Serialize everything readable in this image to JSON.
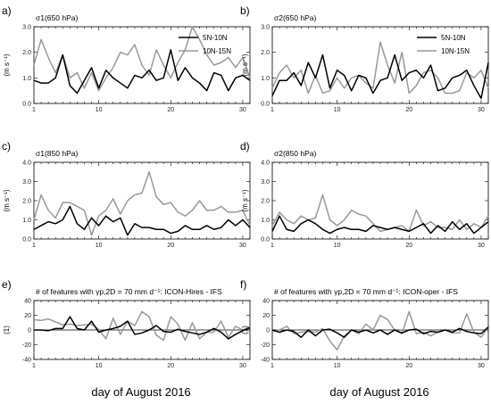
{
  "figure": {
    "xlabel_left": "day of August 2016",
    "xlabel_right": "day of August 2016"
  },
  "chart_data": [
    {
      "type": "line",
      "panel_label": "a)",
      "title": "σ1(650 hPa)",
      "ylabel": "(m s⁻¹)",
      "xlim": [
        1,
        31
      ],
      "ylim": [
        0,
        3
      ],
      "xticks": [
        1,
        10,
        20,
        30
      ],
      "yticks": [
        0,
        1,
        2,
        3
      ],
      "yticklabels": [
        "0.0",
        "1.0",
        "2.0",
        "3.0"
      ],
      "legend": true,
      "legend_position": "top-right",
      "x": [
        1,
        2,
        3,
        4,
        5,
        6,
        7,
        8,
        9,
        10,
        11,
        12,
        13,
        14,
        15,
        16,
        17,
        18,
        19,
        20,
        21,
        22,
        23,
        24,
        25,
        26,
        27,
        28,
        29,
        30,
        31
      ],
      "series": [
        {
          "name": "5N-10N",
          "color": "#000000",
          "values": [
            0.9,
            0.8,
            0.8,
            1.0,
            1.9,
            0.7,
            0.4,
            0.9,
            1.4,
            0.6,
            1.3,
            1.0,
            0.8,
            0.6,
            1.1,
            1.0,
            1.3,
            0.9,
            1.0,
            2.1,
            0.9,
            1.4,
            1.0,
            0.8,
            0.5,
            1.2,
            1.1,
            0.5,
            1.0,
            1.1,
            0.9
          ]
        },
        {
          "name": "10N-15N",
          "color": "#999999",
          "values": [
            1.5,
            2.5,
            1.8,
            1.2,
            1.9,
            1.0,
            1.2,
            0.6,
            1.2,
            0.5,
            1.0,
            1.4,
            2.0,
            1.9,
            2.3,
            1.5,
            1.1,
            2.1,
            1.5,
            1.0,
            1.6,
            2.1,
            3.0,
            2.5,
            1.9,
            1.5,
            1.6,
            1.8,
            1.4,
            1.8,
            1.0
          ]
        }
      ]
    },
    {
      "type": "line",
      "panel_label": "b)",
      "title": "σ2(650 hPa)",
      "ylabel": "(m s⁻¹)",
      "xlim": [
        1,
        31
      ],
      "ylim": [
        0,
        3
      ],
      "xticks": [
        1,
        10,
        20,
        30
      ],
      "yticks": [
        0,
        1,
        2,
        3
      ],
      "yticklabels": [
        "0.0",
        "1.0",
        "2.0",
        "3.0"
      ],
      "legend": true,
      "legend_position": "top-right",
      "x": [
        1,
        2,
        3,
        4,
        5,
        6,
        7,
        8,
        9,
        10,
        11,
        12,
        13,
        14,
        15,
        16,
        17,
        18,
        19,
        20,
        21,
        22,
        23,
        24,
        25,
        26,
        27,
        28,
        29,
        30,
        31
      ],
      "series": [
        {
          "name": "5N-10N",
          "color": "#000000",
          "values": [
            0.3,
            0.9,
            0.9,
            1.2,
            0.7,
            1.6,
            1.0,
            1.9,
            0.6,
            1.3,
            1.1,
            0.5,
            1.1,
            1.0,
            0.4,
            0.9,
            1.0,
            1.9,
            0.9,
            1.2,
            1.3,
            1.0,
            1.5,
            0.5,
            0.6,
            1.0,
            1.1,
            1.3,
            0.7,
            0.2,
            1.6
          ]
        },
        {
          "name": "10N-15N",
          "color": "#999999",
          "values": [
            0.6,
            1.2,
            1.5,
            1.0,
            1.3,
            0.4,
            1.1,
            0.4,
            0.5,
            1.0,
            0.6,
            1.0,
            1.1,
            0.8,
            0.6,
            2.4,
            1.5,
            0.8,
            2.0,
            0.4,
            0.7,
            1.2,
            1.3,
            1.0,
            0.4,
            0.4,
            0.5,
            1.2,
            1.0,
            1.3,
            0.6
          ]
        }
      ]
    },
    {
      "type": "line",
      "panel_label": "c)",
      "title": "σ1(850 hPa)",
      "ylabel": "(m s⁻¹)",
      "xlim": [
        1,
        31
      ],
      "ylim": [
        0,
        4
      ],
      "xticks": [
        1,
        10,
        20,
        30
      ],
      "yticks": [
        0,
        1,
        2,
        3,
        4
      ],
      "yticklabels": [
        "0.0",
        "1.0",
        "2.0",
        "3.0",
        "4.0"
      ],
      "legend": false,
      "x": [
        1,
        2,
        3,
        4,
        5,
        6,
        7,
        8,
        9,
        10,
        11,
        12,
        13,
        14,
        15,
        16,
        17,
        18,
        19,
        20,
        21,
        22,
        23,
        24,
        25,
        26,
        27,
        28,
        29,
        30,
        31
      ],
      "series": [
        {
          "name": "5N-10N",
          "color": "#000000",
          "values": [
            0.5,
            0.7,
            0.9,
            0.8,
            1.0,
            1.7,
            0.8,
            0.5,
            1.1,
            0.7,
            1.2,
            0.9,
            1.1,
            0.2,
            0.8,
            0.6,
            0.6,
            0.5,
            0.5,
            0.3,
            0.4,
            0.7,
            0.5,
            0.5,
            0.7,
            0.5,
            0.6,
            1.0,
            0.7,
            1.0,
            0.6
          ]
        },
        {
          "name": "10N-15N",
          "color": "#999999",
          "values": [
            1.0,
            2.3,
            1.5,
            1.1,
            1.9,
            1.9,
            1.7,
            1.5,
            0.2,
            1.2,
            1.5,
            2.1,
            1.3,
            2.0,
            2.3,
            2.4,
            3.5,
            2.2,
            1.8,
            1.9,
            1.4,
            1.2,
            1.5,
            2.0,
            1.5,
            1.5,
            1.7,
            1.4,
            1.4,
            1.5,
            0.7
          ]
        }
      ]
    },
    {
      "type": "line",
      "panel_label": "d)",
      "title": "σ2(850 hPa)",
      "ylabel": "(m s⁻¹)",
      "xlim": [
        1,
        31
      ],
      "ylim": [
        0,
        4
      ],
      "xticks": [
        1,
        10,
        20,
        30
      ],
      "yticks": [
        0,
        1,
        2,
        3,
        4
      ],
      "yticklabels": [
        "0.0",
        "1.0",
        "2.0",
        "3.0",
        "4.0"
      ],
      "legend": false,
      "x": [
        1,
        2,
        3,
        4,
        5,
        6,
        7,
        8,
        9,
        10,
        11,
        12,
        13,
        14,
        15,
        16,
        17,
        18,
        19,
        20,
        21,
        22,
        23,
        24,
        25,
        26,
        27,
        28,
        29,
        30,
        31
      ],
      "series": [
        {
          "name": "5N-10N",
          "color": "#000000",
          "values": [
            0.4,
            1.2,
            0.5,
            0.4,
            0.8,
            1.0,
            0.8,
            0.5,
            0.3,
            0.5,
            0.6,
            0.5,
            0.5,
            0.4,
            0.7,
            0.6,
            0.5,
            0.6,
            0.5,
            0.4,
            0.6,
            0.8,
            0.3,
            0.7,
            0.4,
            0.9,
            0.5,
            0.8,
            0.3,
            0.6,
            0.9
          ]
        },
        {
          "name": "10N-15N",
          "color": "#999999",
          "values": [
            0.7,
            1.4,
            1.0,
            0.8,
            1.2,
            1.0,
            1.1,
            2.3,
            1.0,
            0.7,
            1.0,
            1.5,
            1.3,
            1.2,
            0.8,
            0.4,
            0.5,
            0.6,
            0.7,
            0.4,
            1.5,
            0.7,
            0.9,
            0.6,
            0.6,
            0.5,
            1.0,
            0.5,
            0.8,
            0.6,
            1.2
          ]
        }
      ]
    },
    {
      "type": "line",
      "panel_label": "e)",
      "title": "# of features with γp,2D = 70 mm d⁻¹: ICON-Hires - IFS",
      "ylabel": "(1)",
      "xlim": [
        1,
        31
      ],
      "ylim": [
        -40,
        40
      ],
      "xticks": [
        1,
        10,
        20,
        30
      ],
      "yticks": [
        -40,
        -20,
        0,
        20,
        40
      ],
      "yticklabels": [
        "-40",
        "-20",
        "0",
        "20",
        "40"
      ],
      "zero_line": true,
      "legend": false,
      "x": [
        1,
        2,
        3,
        4,
        5,
        6,
        7,
        8,
        9,
        10,
        11,
        12,
        13,
        14,
        15,
        16,
        17,
        18,
        19,
        20,
        21,
        22,
        23,
        24,
        25,
        26,
        27,
        28,
        29,
        30,
        31
      ],
      "series": [
        {
          "name": "5N-10N",
          "color": "#000000",
          "values": [
            0,
            0,
            -1,
            2,
            2,
            18,
            2,
            0,
            12,
            -3,
            0,
            2,
            5,
            12,
            -6,
            -4,
            0,
            6,
            -2,
            -3,
            1,
            -2,
            -4,
            -6,
            -3,
            2,
            -3,
            -12,
            -6,
            -1,
            3
          ]
        },
        {
          "name": "10N-15N",
          "color": "#999999",
          "values": [
            14,
            13,
            15,
            11,
            7,
            8,
            6,
            7,
            8,
            1,
            -12,
            16,
            -6,
            12,
            6,
            25,
            18,
            -7,
            -14,
            18,
            8,
            -14,
            10,
            -12,
            -3,
            -3,
            12,
            -10,
            5,
            0,
            5
          ]
        }
      ]
    },
    {
      "type": "line",
      "panel_label": "f)",
      "title": "# of features with γp,2D = 70 mm d⁻¹: ICON-oper - IFS",
      "ylabel": "(1)",
      "xlim": [
        1,
        31
      ],
      "ylim": [
        -40,
        40
      ],
      "xticks": [
        1,
        10,
        20,
        30
      ],
      "yticks": [
        -40,
        -20,
        0,
        20,
        40
      ],
      "yticklabels": [
        "-40",
        "-20",
        "0",
        "20",
        "40"
      ],
      "zero_line": true,
      "legend": false,
      "x": [
        1,
        2,
        3,
        4,
        5,
        6,
        7,
        8,
        9,
        10,
        11,
        12,
        13,
        14,
        15,
        16,
        17,
        18,
        19,
        20,
        21,
        22,
        23,
        24,
        25,
        26,
        27,
        28,
        29,
        30,
        31
      ],
      "series": [
        {
          "name": "5N-10N",
          "color": "#000000",
          "values": [
            0,
            -3,
            0,
            -2,
            -10,
            0,
            -8,
            0,
            1,
            -4,
            -10,
            0,
            -3,
            0,
            -4,
            0,
            -6,
            0,
            -4,
            0,
            1,
            -5,
            -2,
            -3,
            0,
            -3,
            2,
            -2,
            -4,
            -5,
            4
          ]
        },
        {
          "name": "10N-15N",
          "color": "#999999",
          "values": [
            -2,
            0,
            5,
            -5,
            -3,
            -2,
            -3,
            2,
            -15,
            -27,
            -8,
            0,
            -5,
            8,
            0,
            20,
            14,
            0,
            -5,
            25,
            -5,
            -3,
            -8,
            -3,
            0,
            -4,
            -4,
            22,
            -3,
            -10,
            4
          ]
        }
      ]
    }
  ]
}
